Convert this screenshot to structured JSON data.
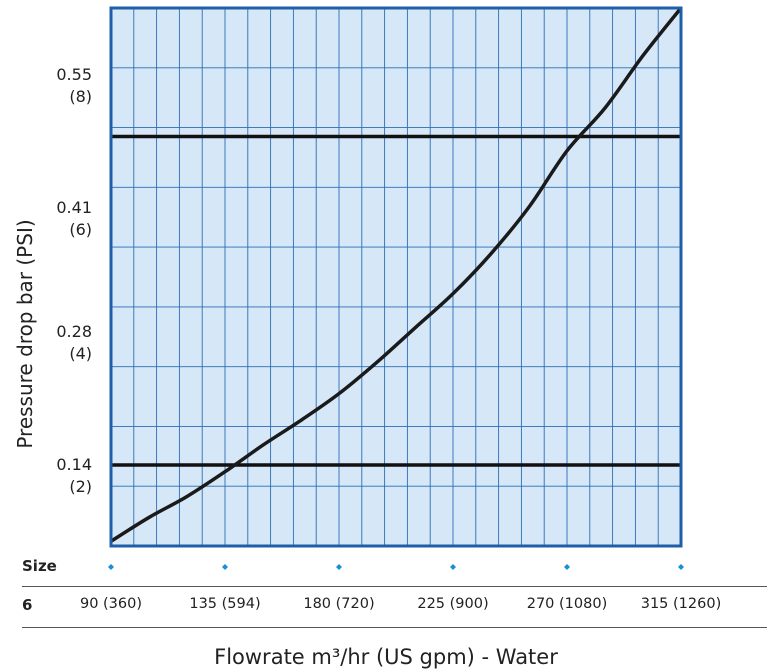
{
  "chart_data": {
    "type": "line",
    "title": "",
    "ylabel": "Pressure drop bar (PSI)",
    "xlabel": "Flowrate m³/hr (US gpm) - Water",
    "x_ticks": [
      {
        "value": 90,
        "label": "90 (360)"
      },
      {
        "value": 135,
        "label": "135 (594)"
      },
      {
        "value": 180,
        "label": "180 (720)"
      },
      {
        "value": 225,
        "label": "225 (900)"
      },
      {
        "value": 270,
        "label": "270 (1080)"
      },
      {
        "value": 315,
        "label": "315 (1260)"
      }
    ],
    "y_ticks": [
      {
        "value": 0.14,
        "bar": "0.14",
        "psi": "(2)"
      },
      {
        "value": 0.28,
        "bar": "0.28",
        "psi": "(4)"
      },
      {
        "value": 0.41,
        "bar": "0.41",
        "psi": "(6)"
      },
      {
        "value": 0.55,
        "bar": "0.55",
        "psi": "(8)"
      }
    ],
    "xlim": [
      90,
      315
    ],
    "ylim": [
      0.055,
      0.62
    ],
    "grid": true,
    "reference_lines": [
      0.14,
      0.485
    ],
    "series": [
      {
        "x": [
          90,
          105,
          120,
          135,
          150,
          165,
          180,
          195,
          210,
          225,
          240,
          255,
          270,
          285,
          300,
          315
        ],
        "y": [
          0.06,
          0.085,
          0.107,
          0.133,
          0.161,
          0.187,
          0.215,
          0.248,
          0.284,
          0.32,
          0.362,
          0.411,
          0.47,
          0.515,
          0.57,
          0.62
        ]
      }
    ],
    "table": {
      "size_header": "Size",
      "rows": [
        {
          "size": "6"
        }
      ]
    },
    "colors": {
      "plot_fill": "#d6e8f7",
      "grid": "#2a6db5",
      "border": "#1f5fa8",
      "curve": "#1a1a1a",
      "marker": "#1a8fd6"
    }
  }
}
